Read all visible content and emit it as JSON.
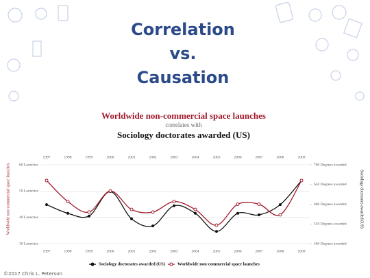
{
  "slide_title": [
    "Correlation",
    "vs.",
    "Causation"
  ],
  "footer": "©2017 Chris L. Peterson",
  "chart_data": {
    "type": "line",
    "title": "Worldwide non-commercial space launches",
    "subtitle": "correlates with",
    "title2": "Sociology doctorates awarded (US)",
    "ylabel": "Worldwide non-commercial space launches",
    "y2label": "Sociology doctorates awarded (US)",
    "categories": [
      "1997",
      "1998",
      "1999",
      "2000",
      "2001",
      "2002",
      "2003",
      "2004",
      "2005",
      "2006",
      "2007",
      "2008",
      "2009"
    ],
    "ylim": [
      30,
      60
    ],
    "yticks": [
      {
        "value": 60,
        "label": "60 Launches"
      },
      {
        "value": 50,
        "label": "50 Launches"
      },
      {
        "value": 40,
        "label": "40 Launches"
      },
      {
        "value": 30,
        "label": "30 Launches"
      }
    ],
    "y2lim": [
      500,
      700
    ],
    "y2ticks": [
      {
        "value": 700,
        "label": "700 Degrees awarded"
      },
      {
        "value": 650,
        "label": "650 Degrees awarded"
      },
      {
        "value": 600,
        "label": "600 Degrees awarded"
      },
      {
        "value": 550,
        "label": "550 Degrees awarded"
      },
      {
        "value": 500,
        "label": "500 Degrees awarded"
      }
    ],
    "grid": true,
    "series": [
      {
        "name": "Sociology doctorates awarded (US)",
        "color": "#111111",
        "axis": "y2",
        "values": [
          599,
          577,
          570,
          632,
          563,
          545,
          596,
          577,
          531,
          577,
          573,
          599,
          660
        ]
      },
      {
        "name": "Worldwide non-commercial space launches",
        "color": "#a0182a",
        "axis": "y",
        "values": [
          54,
          46,
          42,
          50,
          43,
          42,
          46,
          43,
          37,
          45,
          45,
          41,
          54
        ]
      }
    ]
  }
}
